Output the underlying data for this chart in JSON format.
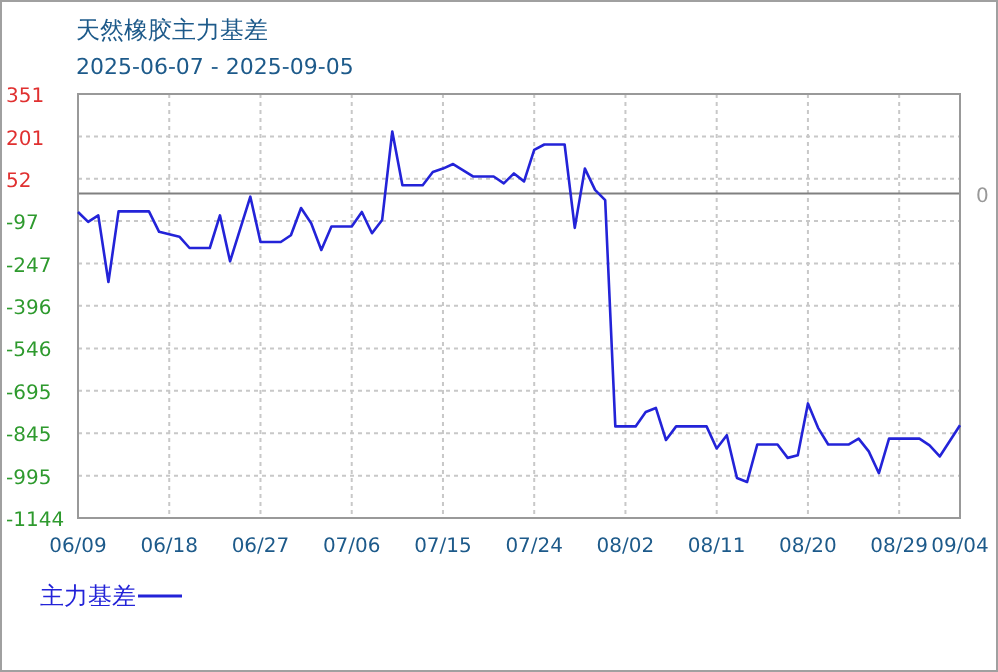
{
  "chart_data": {
    "type": "line",
    "title": "天然橡胶主力基差",
    "subtitle": "2025-06-07 - 2025-09-05",
    "x": [
      "2025-06-09",
      "2025-06-10",
      "2025-06-11",
      "2025-06-12",
      "2025-06-13",
      "2025-06-16",
      "2025-06-17",
      "2025-06-19",
      "2025-06-20",
      "2025-06-22",
      "2025-06-23",
      "2025-06-24",
      "2025-06-26",
      "2025-06-27",
      "2025-06-29",
      "2025-06-30",
      "2025-07-01",
      "2025-07-02",
      "2025-07-03",
      "2025-07-04",
      "2025-07-06",
      "2025-07-07",
      "2025-07-08",
      "2025-07-09",
      "2025-07-10",
      "2025-07-11",
      "2025-07-13",
      "2025-07-14",
      "2025-07-15",
      "2025-07-16",
      "2025-07-18",
      "2025-07-20",
      "2025-07-21",
      "2025-07-22",
      "2025-07-23",
      "2025-07-24",
      "2025-07-25",
      "2025-07-27",
      "2025-07-28",
      "2025-07-29",
      "2025-07-30",
      "2025-07-31",
      "2025-08-01",
      "2025-08-03",
      "2025-08-04",
      "2025-08-05",
      "2025-08-06",
      "2025-08-07",
      "2025-08-10",
      "2025-08-11",
      "2025-08-12",
      "2025-08-13",
      "2025-08-14",
      "2025-08-15",
      "2025-08-17",
      "2025-08-18",
      "2025-08-19",
      "2025-08-20",
      "2025-08-21",
      "2025-08-22",
      "2025-08-24",
      "2025-08-25",
      "2025-08-26",
      "2025-08-27",
      "2025-08-28",
      "2025-08-31",
      "2025-09-01",
      "2025-09-02",
      "2025-09-04"
    ],
    "series": [
      {
        "name": "主力基差",
        "color": "#2323d8",
        "values": [
          -65,
          -100,
          -77,
          -312,
          -63,
          -63,
          -135,
          -152,
          -192,
          -192,
          -77,
          -239,
          -11,
          -171,
          -171,
          -147,
          -51,
          -105,
          -199,
          -116,
          -116,
          -65,
          -140,
          -93,
          219,
          29,
          29,
          76,
          88,
          104,
          60,
          60,
          36,
          71,
          43,
          154,
          173,
          173,
          -121,
          88,
          13,
          -23,
          -821,
          -821,
          -770,
          -756,
          -869,
          -821,
          -821,
          -899,
          -852,
          -1003,
          -1017,
          -885,
          -885,
          -932,
          -923,
          -740,
          -826,
          -885,
          -885,
          -864,
          -909,
          -986,
          -864,
          -864,
          -888,
          -927,
          -817
        ]
      }
    ],
    "xlim": [
      "2025-06-09",
      "2025-09-04"
    ],
    "xticks": [
      {
        "value": "2025-06-09",
        "label": "06/09"
      },
      {
        "value": "2025-06-18",
        "label": "06/18"
      },
      {
        "value": "2025-06-27",
        "label": "06/27"
      },
      {
        "value": "2025-07-06",
        "label": "07/06"
      },
      {
        "value": "2025-07-15",
        "label": "07/15"
      },
      {
        "value": "2025-07-24",
        "label": "07/24"
      },
      {
        "value": "2025-08-02",
        "label": "08/02"
      },
      {
        "value": "2025-08-11",
        "label": "08/11"
      },
      {
        "value": "2025-08-20",
        "label": "08/20"
      },
      {
        "value": "2025-08-29",
        "label": "08/29"
      },
      {
        "value": "2025-09-04",
        "label": "09/04"
      }
    ],
    "ylim": [
      -1144,
      351
    ],
    "yticks": [
      351,
      201,
      52,
      -97,
      -247,
      -396,
      -546,
      -695,
      -845,
      -995,
      -1144
    ],
    "ref_lines": [
      {
        "axis": "y",
        "value": 0,
        "label": "0",
        "color": "#808080"
      }
    ],
    "grid": true,
    "legend": "bottom left"
  }
}
